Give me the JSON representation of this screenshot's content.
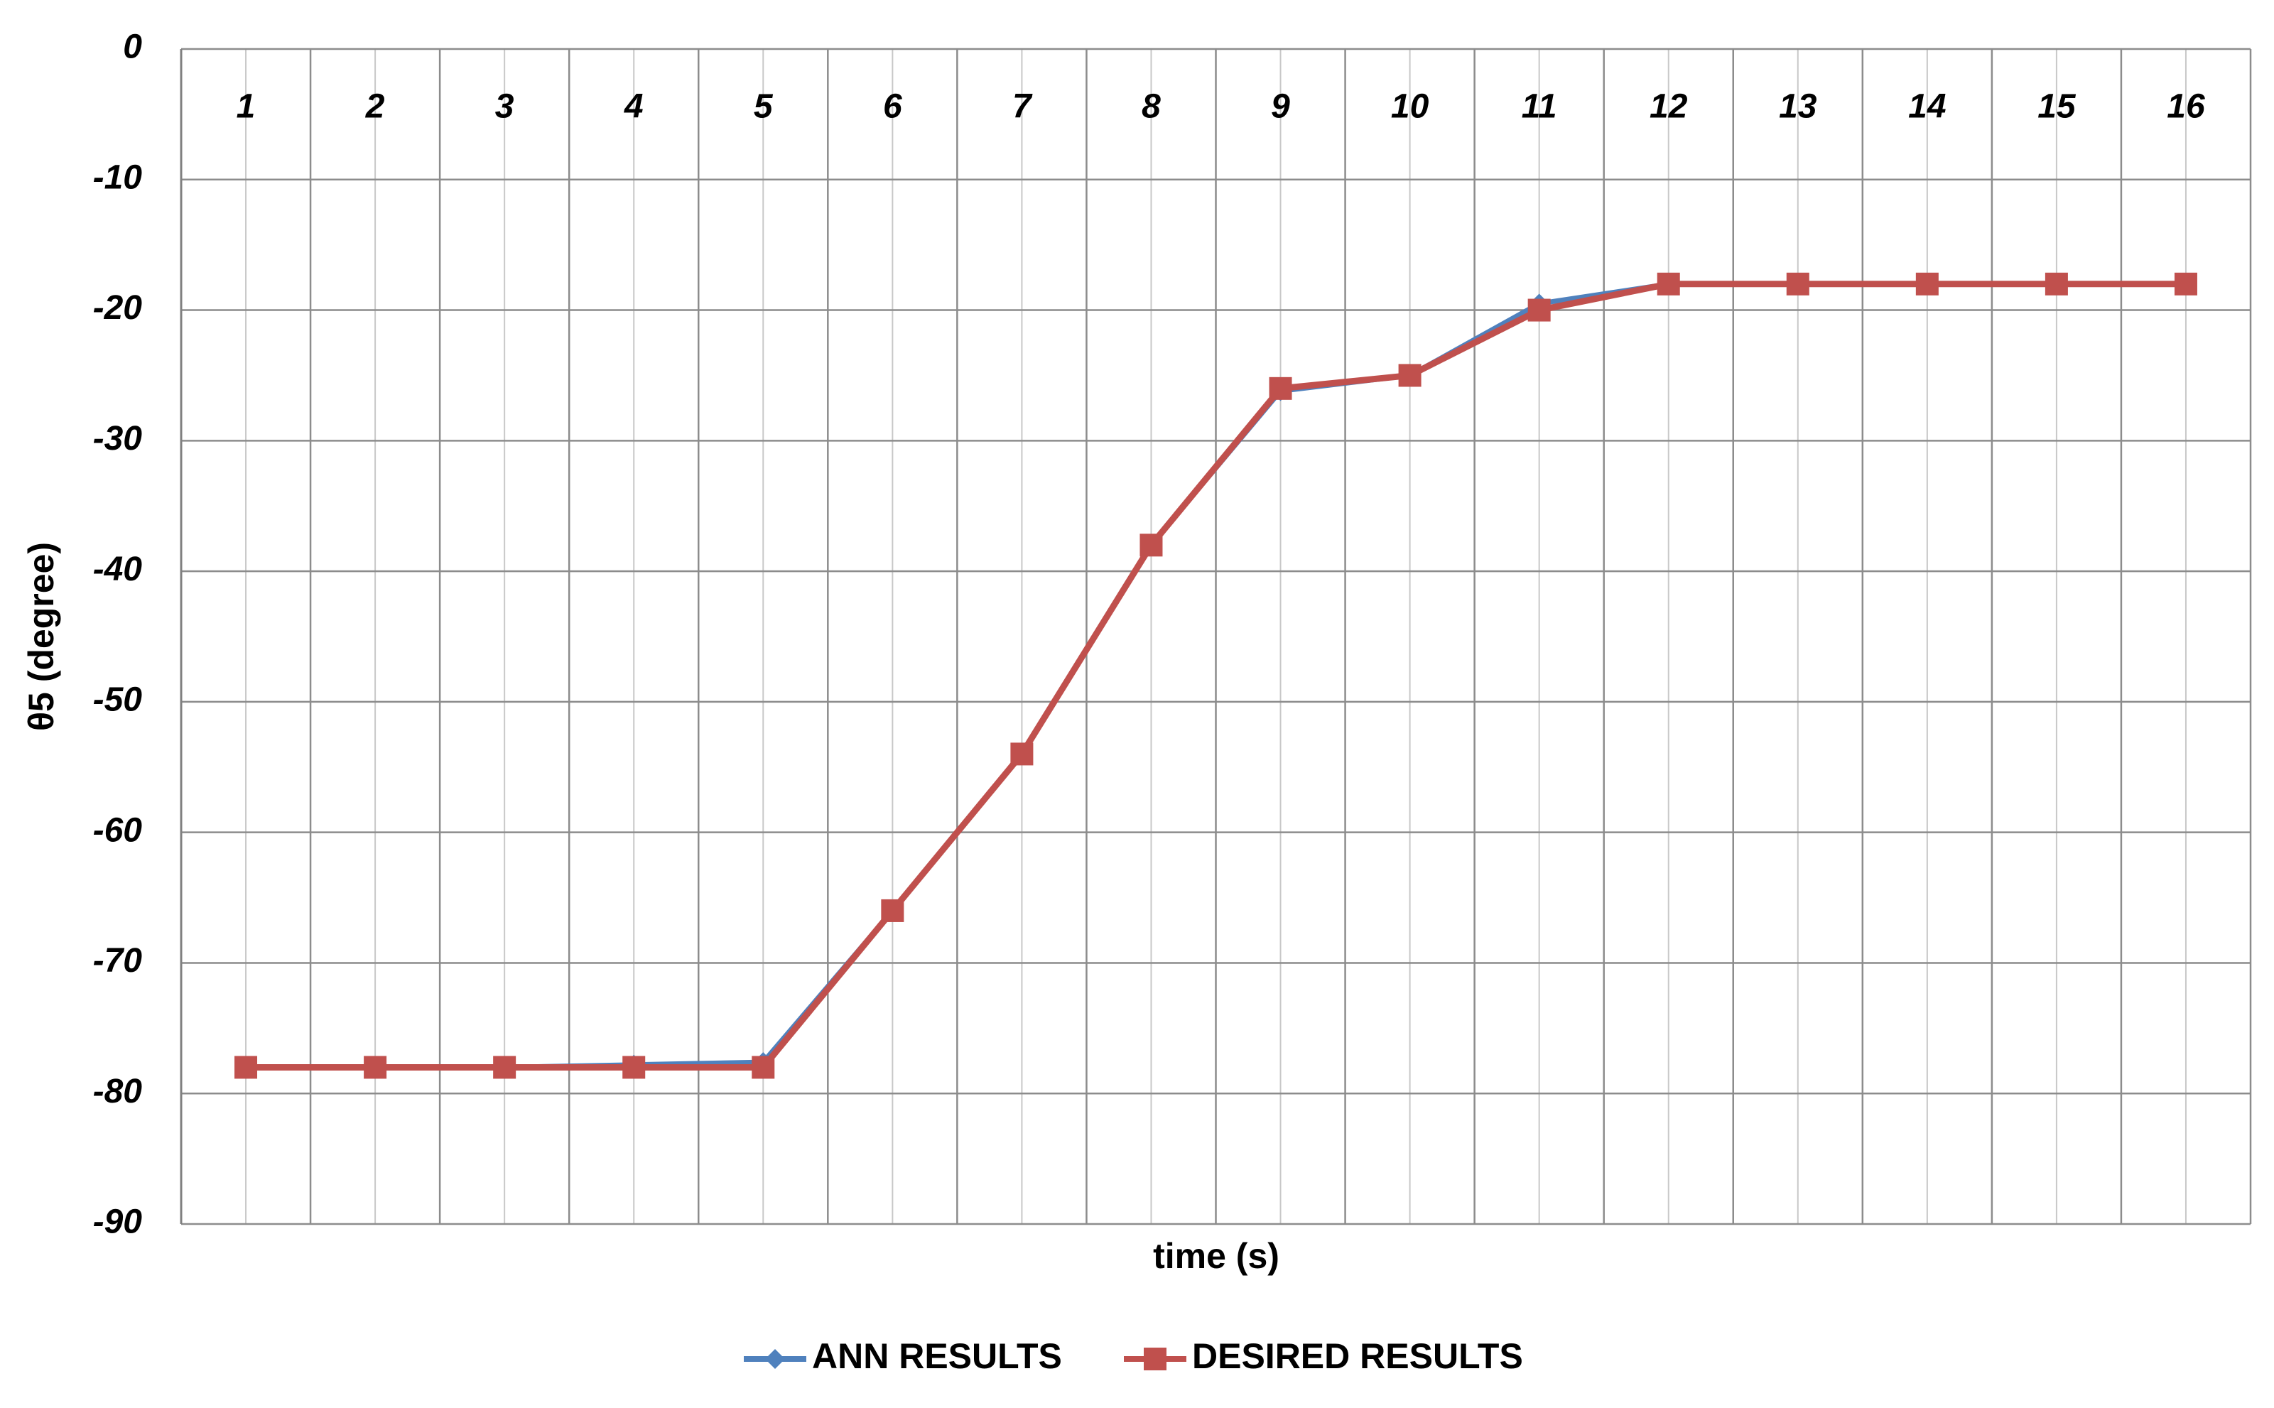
{
  "chart_data": {
    "type": "line",
    "x_label": "time (s)",
    "y_label": "θ5 (degree)",
    "categories": [
      "1",
      "2",
      "3",
      "4",
      "5",
      "6",
      "7",
      "8",
      "9",
      "10",
      "11",
      "12",
      "13",
      "14",
      "15",
      "16"
    ],
    "series": [
      {
        "name": "ANN RESULTS",
        "color": "#4f81bd",
        "marker": "diamond",
        "values": [
          -78,
          -78,
          -78,
          -77.8,
          -77.6,
          -66,
          -54,
          -38,
          -26.2,
          -25,
          -19.5,
          -18,
          -18,
          -18,
          -18,
          -18
        ]
      },
      {
        "name": "DESIRED RESULTS",
        "color": "#c0504d",
        "marker": "square",
        "values": [
          -78,
          -78,
          -78,
          -78,
          -78,
          -66,
          -54,
          -38,
          -26,
          -25,
          -20,
          -18,
          -18,
          -18,
          -18,
          -18
        ]
      }
    ],
    "ylim": [
      -90,
      0
    ],
    "yticks": [
      0,
      -10,
      -20,
      -30,
      -40,
      -50,
      -60,
      -70,
      -80,
      -90
    ],
    "grid": true
  }
}
